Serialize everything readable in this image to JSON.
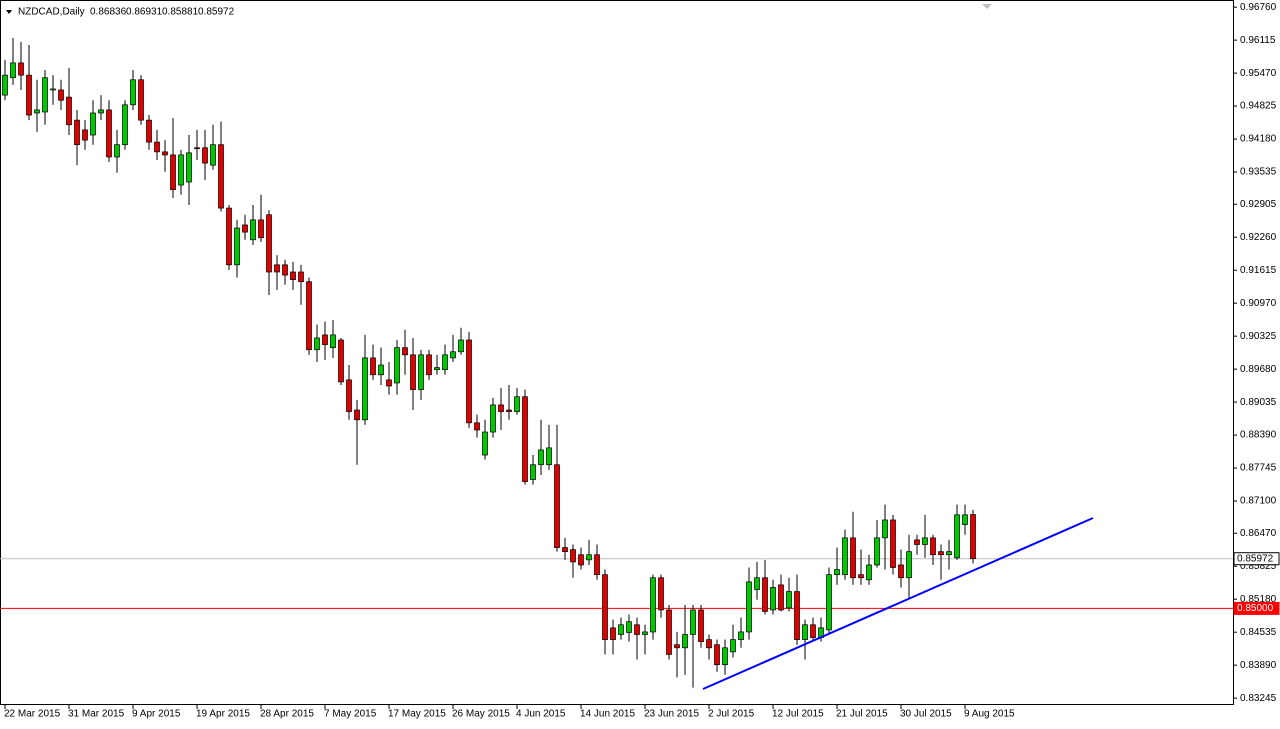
{
  "chart_data": {
    "type": "candlestick",
    "symbol": "NZDCAD,Daily",
    "categories": [
      "22 Mar 2015",
      null,
      null,
      null,
      null,
      null,
      null,
      null,
      "31 Mar 2015",
      null,
      null,
      null,
      null,
      null,
      null,
      null,
      "9 Apr 2015",
      null,
      null,
      null,
      null,
      null,
      null,
      null,
      "19 Apr 2015",
      null,
      null,
      null,
      null,
      null,
      null,
      null,
      "28 Apr 2015",
      null,
      null,
      null,
      null,
      null,
      null,
      null,
      "7 May 2015",
      null,
      null,
      null,
      null,
      null,
      null,
      null,
      "17 May 2015",
      null,
      null,
      null,
      null,
      null,
      null,
      null,
      "26 May 2015",
      null,
      null,
      null,
      null,
      null,
      null,
      null,
      "4 Jun 2015",
      null,
      null,
      null,
      null,
      null,
      null,
      null,
      "14 Jun 2015",
      null,
      null,
      null,
      null,
      null,
      null,
      null,
      "23 Jun 2015",
      null,
      null,
      null,
      null,
      null,
      null,
      null,
      "2 Jul 2015",
      null,
      null,
      null,
      null,
      null,
      null,
      null,
      "12 Jul 2015",
      null,
      null,
      null,
      null,
      null,
      null,
      null,
      "21 Jul 2015",
      null,
      null,
      null,
      null,
      null,
      null,
      null,
      "30 Jul 2015",
      null,
      null,
      null,
      null,
      null,
      null,
      null,
      "9 Aug 2015",
      null
    ],
    "open": [
      0.9504,
      0.9538,
      0.9567,
      0.9543,
      0.9469,
      0.9471,
      0.9514,
      0.9514,
      0.95,
      0.9455,
      0.9436,
      0.9426,
      0.9469,
      0.9475,
      0.9383,
      0.9407,
      0.9485,
      0.9534,
      0.9455,
      0.9412,
      0.9393,
      0.9387,
      0.9328,
      0.9334,
      0.9401,
      0.9401,
      0.9367,
      0.9407,
      0.9283,
      0.9172,
      0.925,
      0.9221,
      0.926,
      0.927,
      0.9172,
      0.9172,
      0.9158,
      0.9158,
      0.9139,
      0.9006,
      0.9035,
      0.901,
      0.9025,
      0.8947,
      0.8888,
      0.8869,
      0.899,
      0.8957,
      0.8947,
      0.8941,
      0.901,
      0.8996,
      0.8928,
      0.8996,
      0.8967,
      0.8967,
      0.899,
      0.9002,
      0.9025,
      0.8863,
      0.88,
      0.8845,
      0.8898,
      0.8888,
      0.8885,
      0.8914,
      0.8752,
      0.8781,
      0.8781,
      0.8781,
      0.8619,
      0.8615,
      0.8605,
      0.8595,
      0.8605,
      0.8566,
      0.8462,
      0.8449,
      0.8453,
      0.8468,
      0.8449,
      0.8454,
      0.856,
      0.8497,
      0.8429,
      0.8423,
      0.8449,
      0.8497,
      0.8439,
      0.8429,
      0.839,
      0.8415,
      0.8439,
      0.8454,
      0.8537,
      0.856,
      0.8497,
      0.8546,
      0.8501,
      0.8533,
      0.8439,
      0.8468,
      0.8443,
      0.8458,
      0.8566,
      0.8566,
      0.8638,
      0.8566,
      0.8556,
      0.8585,
      0.8638,
      0.8673,
      0.8585,
      0.856,
      0.8634,
      0.8625,
      0.8638,
      0.8611,
      0.8605,
      0.8599,
      0.8664,
      0.86836
    ],
    "high": [
      0.9573,
      0.9616,
      0.9608,
      0.9602,
      0.9534,
      0.9553,
      0.9543,
      0.9534,
      0.9557,
      0.9475,
      0.9455,
      0.9494,
      0.9504,
      0.9494,
      0.9436,
      0.9494,
      0.9553,
      0.9543,
      0.9465,
      0.9436,
      0.9416,
      0.9459,
      0.9397,
      0.9426,
      0.9436,
      0.9436,
      0.9446,
      0.9452,
      0.9289,
      0.926,
      0.927,
      0.9289,
      0.9309,
      0.9279,
      0.9191,
      0.9182,
      0.9178,
      0.9172,
      0.9147,
      0.9055,
      0.9061,
      0.9064,
      0.9029,
      0.8976,
      0.8908,
      0.9035,
      0.9016,
      0.901,
      0.8982,
      0.9025,
      0.9045,
      0.9029,
      0.9006,
      0.9006,
      0.8996,
      0.9016,
      0.9035,
      0.9049,
      0.9041,
      0.8879,
      0.8869,
      0.8912,
      0.8931,
      0.8937,
      0.8931,
      0.8928,
      0.88,
      0.8869,
      0.8859,
      0.8859,
      0.8638,
      0.8625,
      0.8619,
      0.8634,
      0.8625,
      0.8576,
      0.8478,
      0.8482,
      0.8488,
      0.8482,
      0.8468,
      0.8566,
      0.8566,
      0.8507,
      0.8454,
      0.8507,
      0.8507,
      0.8507,
      0.8449,
      0.8439,
      0.8439,
      0.8468,
      0.8482,
      0.858,
      0.8591,
      0.8595,
      0.8556,
      0.8566,
      0.856,
      0.8566,
      0.8478,
      0.8482,
      0.8482,
      0.858,
      0.8619,
      0.8654,
      0.8689,
      0.8615,
      0.8605,
      0.8673,
      0.8703,
      0.8683,
      0.8615,
      0.8644,
      0.8644,
      0.8683,
      0.8644,
      0.8625,
      0.8634,
      0.8703,
      0.8703,
      0.86931
    ],
    "low": [
      0.9494,
      0.9524,
      0.9514,
      0.9455,
      0.9432,
      0.9446,
      0.9485,
      0.9475,
      0.9426,
      0.9367,
      0.9397,
      0.9407,
      0.9455,
      0.9373,
      0.9352,
      0.9397,
      0.9475,
      0.9446,
      0.9397,
      0.9377,
      0.9354,
      0.9303,
      0.9309,
      0.9289,
      0.9377,
      0.9338,
      0.9358,
      0.9276,
      0.9162,
      0.9147,
      0.9221,
      0.9211,
      0.9217,
      0.9113,
      0.9123,
      0.9133,
      0.9123,
      0.9094,
      0.8996,
      0.8982,
      0.8986,
      0.899,
      0.8937,
      0.8869,
      0.8781,
      0.8859,
      0.8947,
      0.8937,
      0.8918,
      0.8918,
      0.8957,
      0.8888,
      0.8908,
      0.8947,
      0.8957,
      0.8957,
      0.8982,
      0.8996,
      0.8853,
      0.8834,
      0.8791,
      0.8834,
      0.8849,
      0.8869,
      0.8879,
      0.8742,
      0.8742,
      0.8761,
      0.8771,
      0.8611,
      0.8595,
      0.856,
      0.8576,
      0.8585,
      0.8556,
      0.841,
      0.841,
      0.8439,
      0.8435,
      0.84,
      0.841,
      0.8439,
      0.8482,
      0.84,
      0.8365,
      0.837,
      0.8345,
      0.8423,
      0.84,
      0.8376,
      0.837,
      0.8404,
      0.8423,
      0.8439,
      0.8517,
      0.8488,
      0.8488,
      0.8494,
      0.8494,
      0.8429,
      0.84,
      0.8435,
      0.8435,
      0.8449,
      0.8546,
      0.8556,
      0.8546,
      0.8546,
      0.8546,
      0.858,
      0.8576,
      0.8566,
      0.8541,
      0.8521,
      0.8605,
      0.8599,
      0.8585,
      0.8556,
      0.8576,
      0.8595,
      0.8644,
      0.85881
    ],
    "close": [
      0.9543,
      0.9567,
      0.9543,
      0.9465,
      0.9475,
      0.9538,
      0.9516,
      0.9494,
      0.9446,
      0.9407,
      0.9416,
      0.9469,
      0.9475,
      0.9383,
      0.9407,
      0.9485,
      0.9534,
      0.9455,
      0.9412,
      0.9393,
      0.9387,
      0.9319,
      0.9387,
      0.9391,
      0.9399,
      0.9371,
      0.9407,
      0.9283,
      0.9172,
      0.9244,
      0.9236,
      0.926,
      0.9225,
      0.9158,
      0.9158,
      0.9152,
      0.9143,
      0.9139,
      0.9006,
      0.9029,
      0.9016,
      0.9035,
      0.8943,
      0.8885,
      0.8869,
      0.899,
      0.8957,
      0.8976,
      0.8935,
      0.901,
      0.8996,
      0.8928,
      0.8996,
      0.8957,
      0.8971,
      0.8996,
      0.9002,
      0.9025,
      0.8863,
      0.8849,
      0.8845,
      0.8898,
      0.8885,
      0.8885,
      0.8914,
      0.8748,
      0.8781,
      0.881,
      0.8814,
      0.8619,
      0.8611,
      0.8591,
      0.8585,
      0.8605,
      0.8566,
      0.8439,
      0.8439,
      0.8468,
      0.8474,
      0.8449,
      0.8454,
      0.856,
      0.8497,
      0.841,
      0.8423,
      0.8449,
      0.8497,
      0.8435,
      0.8423,
      0.839,
      0.8423,
      0.8439,
      0.8454,
      0.8552,
      0.856,
      0.8494,
      0.8541,
      0.8497,
      0.8533,
      0.8439,
      0.8468,
      0.8443,
      0.8462,
      0.8566,
      0.8576,
      0.8638,
      0.856,
      0.856,
      0.8585,
      0.8638,
      0.8673,
      0.858,
      0.856,
      0.8611,
      0.8625,
      0.8638,
      0.8605,
      0.8605,
      0.8611,
      0.8683,
      0.8683,
      0.85972
    ],
    "up_color": "#00c800",
    "down_color": "#e00000",
    "ylim": [
      0.8315,
      0.969
    ],
    "yticks": [
      {
        "value": 0.9676,
        "label": "0.96760"
      },
      0.96115,
      {
        "value": 0.9547,
        "label": "0.95470"
      },
      0.94825,
      {
        "value": 0.9418,
        "label": "0.94180"
      },
      0.93535,
      0.92905,
      {
        "value": 0.9226,
        "label": "0.92260"
      },
      0.91615,
      {
        "value": 0.9097,
        "label": "0.90970"
      },
      0.90325,
      {
        "value": 0.8968,
        "label": "0.89680"
      },
      0.89035,
      {
        "value": 0.8839,
        "label": "0.88390"
      },
      0.87745,
      {
        "value": 0.871,
        "label": "0.87100"
      },
      {
        "value": 0.8647,
        "label": "0.86470"
      },
      0.85825,
      {
        "value": 0.8518,
        "label": "0.85180"
      },
      0.84535,
      {
        "value": 0.8389,
        "label": "0.83890"
      },
      0.83245
    ],
    "price_lines": [
      {
        "value": 0.85972,
        "label": "0.85972",
        "color": "#c0c0c0"
      },
      {
        "value": 0.85,
        "label": "0.85000",
        "color": "#ff0000"
      }
    ]
  }
}
